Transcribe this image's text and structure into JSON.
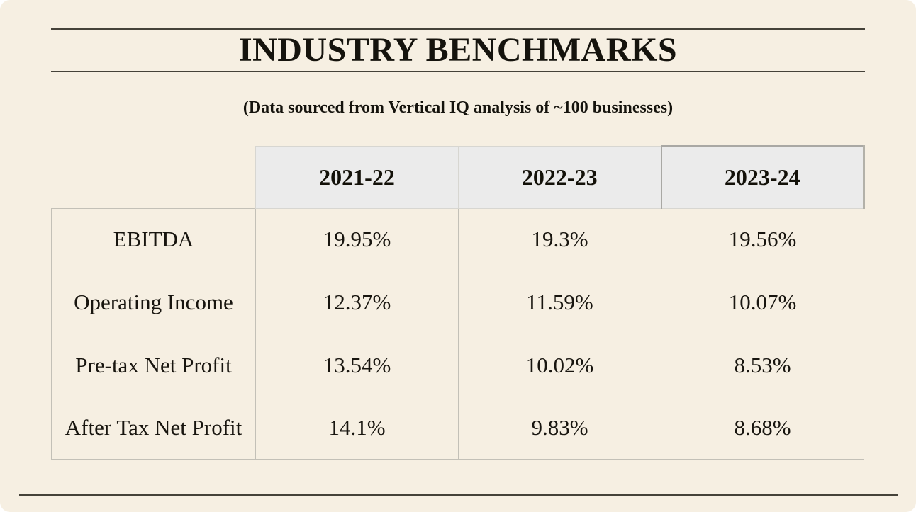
{
  "header": {
    "title": "INDUSTRY BENCHMARKS",
    "subtitle": "(Data sourced from Vertical IQ analysis of ~100 businesses)"
  },
  "table": {
    "columns": [
      "2021-22",
      "2022-23",
      "2023-24"
    ],
    "rows": [
      {
        "label": "EBITDA",
        "values": [
          "19.95%",
          "19.3%",
          "19.56%"
        ]
      },
      {
        "label": "Operating Income",
        "values": [
          "12.37%",
          "11.59%",
          "10.07%"
        ]
      },
      {
        "label": "Pre-tax Net Profit",
        "values": [
          "13.54%",
          "10.02%",
          "8.53%"
        ]
      },
      {
        "label": "After Tax Net Profit",
        "values": [
          "14.1%",
          "9.83%",
          "8.68%"
        ]
      }
    ]
  },
  "colors": {
    "page_bg": "#f6efe2",
    "header_bg": "#ebebeb",
    "grid_border": "#c3c0b7",
    "header_border": "#d7d6d1",
    "active_border": "#a9a8a4",
    "rule_color": "#454239",
    "text_color": "#1c1a14"
  }
}
